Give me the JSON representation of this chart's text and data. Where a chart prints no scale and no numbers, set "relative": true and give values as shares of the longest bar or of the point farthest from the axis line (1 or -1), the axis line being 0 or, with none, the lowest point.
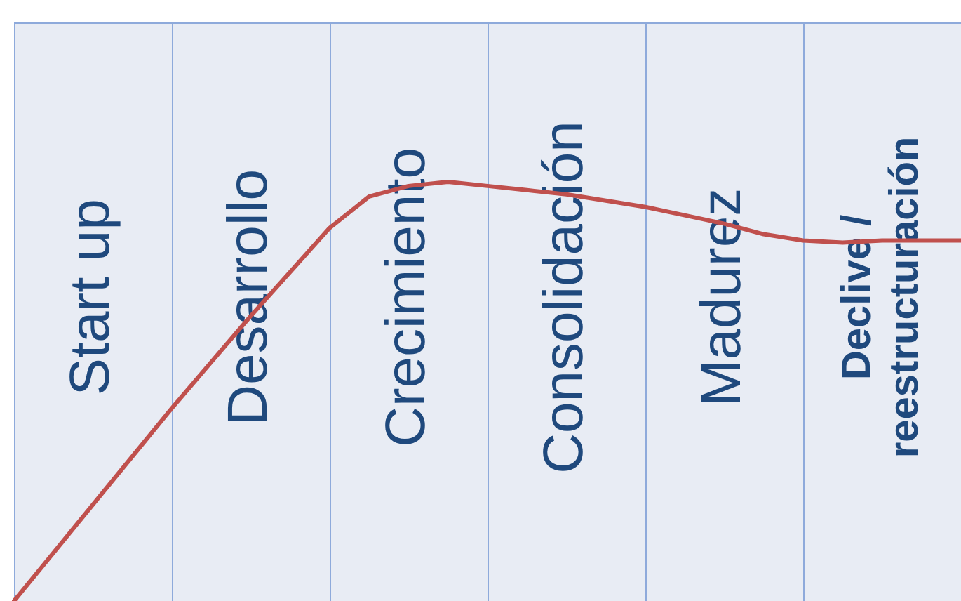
{
  "chart_data": {
    "type": "line",
    "relative": true,
    "tick_labels": false,
    "legend": false,
    "grid": "x",
    "categories": [
      null,
      null,
      null,
      null,
      null,
      null,
      null,
      null,
      null,
      null,
      null,
      null,
      null,
      null,
      null,
      null,
      null,
      null,
      null,
      null,
      null,
      null,
      null,
      null,
      null
    ],
    "series": [
      {
        "color": "#c0504d",
        "values": [
          0,
          0.115,
          0.23,
          0.345,
          0.46,
          0.57,
          0.68,
          0.785,
          0.89,
          0.965,
          0.99,
          1,
          0.99,
          0.98,
          0.97,
          0.955,
          0.94,
          0.92,
          0.9,
          0.875,
          0.86,
          0.855,
          0.86,
          0.86,
          0.86
        ]
      }
    ],
    "annotations": [
      "Start up",
      "Desarrollo",
      "Crecimiento",
      "Consolidación",
      "Madurez",
      "Declive / reestructuración"
    ]
  }
}
